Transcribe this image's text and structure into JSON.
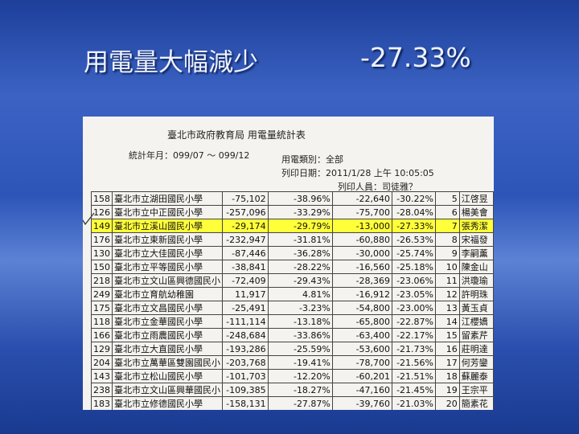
{
  "slide": {
    "title": "用電量大幅減少",
    "figure": "-27.33%"
  },
  "document": {
    "title": "臺北市政府教育局 用電量統計表",
    "period": "統計年月：099/07 ～ 099/12",
    "category": "用電類別：全部",
    "print_date": "列印日期：2011/1/28 上午 10:05:05",
    "printer": "列印人員：司徒雅？",
    "table": {
      "highlight_row": 2,
      "rows": [
        [
          "158",
          "臺北市立湖田國民小學",
          "-75,102",
          "-38.96%",
          "-22,640",
          "-30.22%",
          "5",
          "江啓昱"
        ],
        [
          "126",
          "臺北市立中正國民小學",
          "-257,096",
          "-33.29%",
          "-75,700",
          "-28.04%",
          "6",
          "楊美會"
        ],
        [
          "149",
          "臺北市立溪山國民小學",
          "-29,174",
          "-29.79%",
          "-13,000",
          "-27.33%",
          "7",
          "張秀潔"
        ],
        [
          "176",
          "臺北市立東新國民小學",
          "-232,947",
          "-31.81%",
          "-60,880",
          "-26.53%",
          "8",
          "宋福發"
        ],
        [
          "130",
          "臺北市立大佳國民小學",
          "-87,446",
          "-36.28%",
          "-30,000",
          "-25.74%",
          "9",
          "李嗣薰"
        ],
        [
          "150",
          "臺北市立平等國民小學",
          "-38,841",
          "-28.22%",
          "-16,560",
          "-25.18%",
          "10",
          "陳金山"
        ],
        [
          "218",
          "臺北市立文山區興德國民小",
          "-72,409",
          "-29.43%",
          "-28,369",
          "-23.06%",
          "11",
          "洪瓊瑜"
        ],
        [
          "249",
          "臺北市立育航幼稚園",
          "11,917",
          "4.81%",
          "-16,912",
          "-23.05%",
          "12",
          "許明珠"
        ],
        [
          "175",
          "臺北市立文昌國民小學",
          "-25,491",
          "-3.23%",
          "-54,800",
          "-23.00%",
          "13",
          "黃玉貞"
        ],
        [
          "118",
          "臺北市立金華國民小學",
          "-111,114",
          "-13.18%",
          "-65,800",
          "-22.87%",
          "14",
          "江櫻嬌"
        ],
        [
          "166",
          "臺北市立雨農國民小學",
          "-248,684",
          "-33.86%",
          "-63,400",
          "-22.17%",
          "15",
          "留素芹"
        ],
        [
          "129",
          "臺北市立大直國民小學",
          "-193,286",
          "-25.59%",
          "-53,600",
          "-21.73%",
          "16",
          "莊明達"
        ],
        [
          "204",
          "臺北市立萬華區雙園國民小",
          "-203,768",
          "-19.41%",
          "-78,700",
          "-21.56%",
          "17",
          "何芳鑾"
        ],
        [
          "143",
          "臺北市立松山國民小學",
          "-101,703",
          "-12.20%",
          "-60,201",
          "-21.51%",
          "18",
          "蘇麗泰"
        ],
        [
          "238",
          "臺北市立文山區興華國民小",
          "-109,385",
          "-18.27%",
          "-47,160",
          "-21.45%",
          "19",
          "王宗平"
        ],
        [
          "183",
          "臺北市立修德國民小學",
          "-158,131",
          "-27.87%",
          "-39,760",
          "-21.03%",
          "20",
          "簡素花"
        ]
      ]
    }
  }
}
